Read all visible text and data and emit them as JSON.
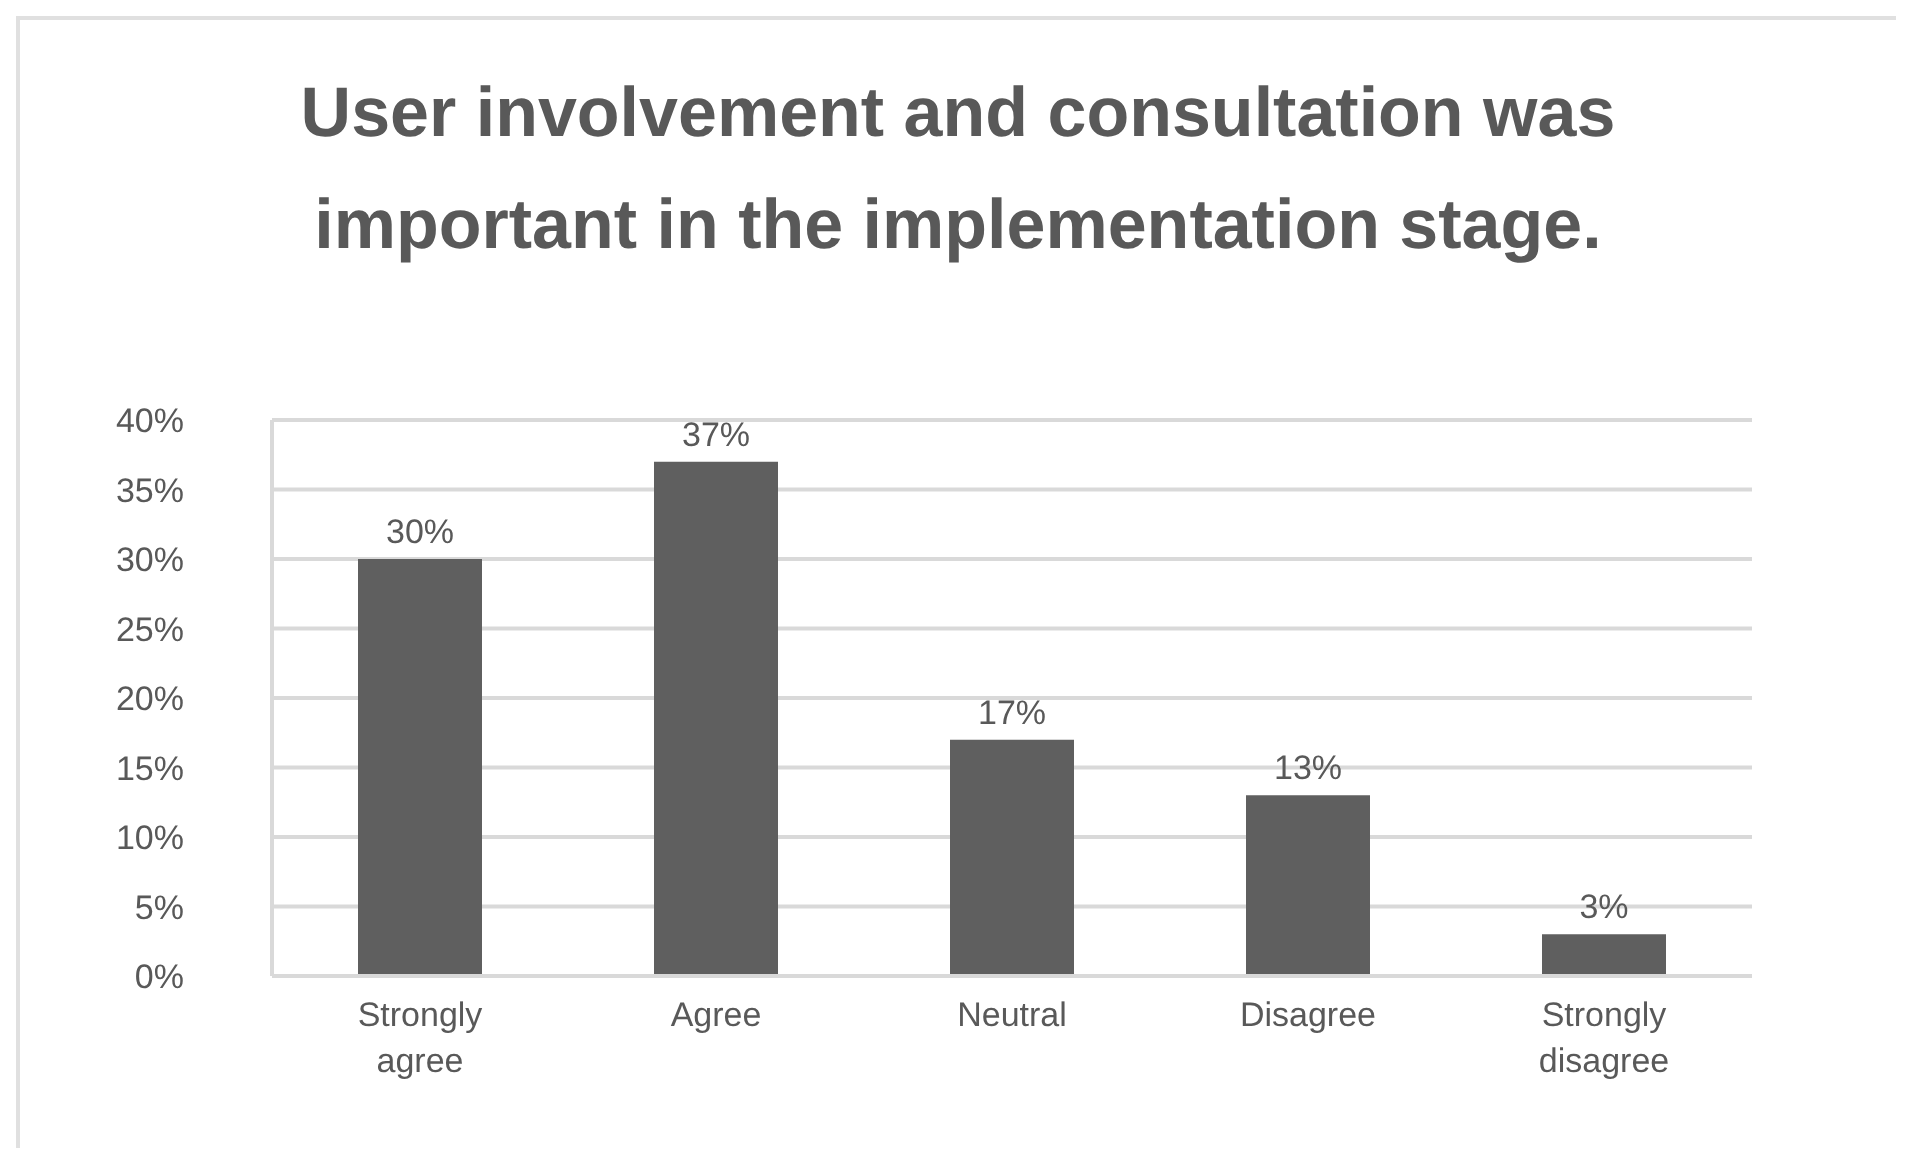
{
  "chart_data": {
    "type": "bar",
    "title": "User involvement and consultation was important in the implementation stage.",
    "categories": [
      "Strongly agree",
      "Agree",
      "Neutral",
      "Disagree",
      "Strongly disagree"
    ],
    "values": [
      30,
      37,
      17,
      13,
      3
    ],
    "color": "#5f5f5f",
    "value_labels": [
      "30%",
      "37%",
      "17%",
      "13%",
      "3%"
    ],
    "ylim": [
      0,
      40
    ],
    "yticks": [
      {
        "value": 0,
        "label": "0%"
      },
      {
        "value": 5,
        "label": "5%"
      },
      {
        "value": 10,
        "label": "10%"
      },
      {
        "value": 15,
        "label": "15%"
      },
      {
        "value": 20,
        "label": "20%"
      },
      {
        "value": 25,
        "label": "25%"
      },
      {
        "value": 30,
        "label": "30%"
      },
      {
        "value": 35,
        "label": "35%"
      },
      {
        "value": 40,
        "label": "40%"
      }
    ],
    "grid": "y"
  }
}
